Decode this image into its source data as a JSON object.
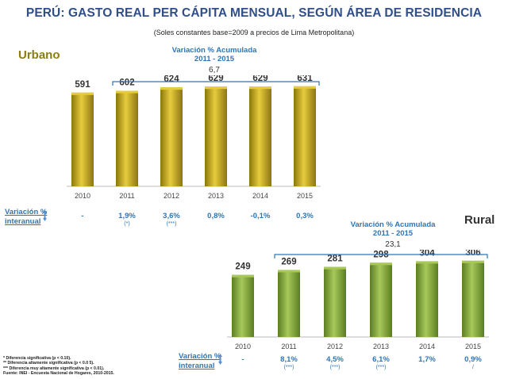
{
  "title": "PERÚ: GASTO REAL PER CÁPITA MENSUAL, SEGÚN ÁREA DE RESIDENCIA",
  "subtitle": "(Soles constantes base=2009 a precios de Lima Metropolitana)",
  "colors": {
    "title": "#2f4e8a",
    "urban_bar": "#b59b16",
    "rural_bar": "#78a030",
    "accent": "#2e75b6"
  },
  "urban": {
    "label": "Urbano",
    "accum_title": "Variación % Acumulada",
    "accum_period": "2011 - 2015",
    "accum_value": "6,7",
    "row_label_1": "Variación %",
    "row_label_2": "interanual",
    "variations": [
      "-",
      "1,9%",
      "3,6%",
      "0,8%",
      "-0,1%",
      "0,3%"
    ],
    "significance": [
      "",
      "(*)",
      "(***)",
      "",
      "",
      ""
    ]
  },
  "rural": {
    "label": "Rural",
    "accum_title": "Variación % Acumulada",
    "accum_period": "2011 - 2015",
    "accum_value": "23,1",
    "row_label_1": "Variación %",
    "row_label_2": "interanual",
    "variations": [
      "-",
      "8,1%",
      "4,5%",
      "6,1%",
      "1,7%",
      "0,9%"
    ],
    "significance": [
      "",
      "(***)",
      "(***)",
      "(***)",
      "",
      "/"
    ]
  },
  "chart_data": [
    {
      "type": "bar",
      "series": [
        {
          "name": "Urbano",
          "values": [
            591,
            602,
            624,
            629,
            629,
            631
          ]
        }
      ],
      "categories": [
        "2010",
        "2011",
        "2012",
        "2013",
        "2014",
        "2015"
      ],
      "title": "Urbano",
      "xlabel": "",
      "ylabel": "",
      "ylim": [
        0,
        700
      ],
      "grid": false
    },
    {
      "type": "bar",
      "series": [
        {
          "name": "Rural",
          "values": [
            249,
            269,
            281,
            298,
            304,
            306
          ]
        }
      ],
      "categories": [
        "2010",
        "2011",
        "2012",
        "2013",
        "2014",
        "2015"
      ],
      "title": "Rural",
      "xlabel": "",
      "ylabel": "",
      "ylim": [
        0,
        350
      ],
      "grid": false
    }
  ],
  "notes": [
    "* Diferencia significativa (p < 0.10).",
    "** Diferencia altamente significativa (p < 0.0 5).",
    "*** Diferencia muy altamente significativa (p < 0.01).",
    "Fuente: INEI - Encuesta Nacional de Hogares, 2010-2015."
  ]
}
